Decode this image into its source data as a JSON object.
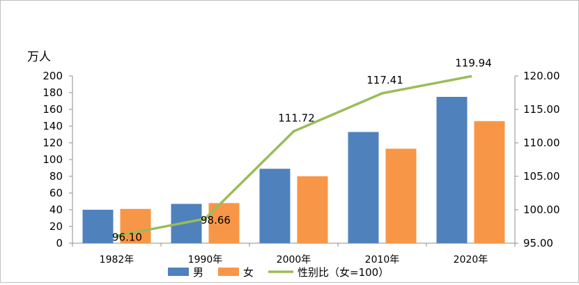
{
  "chart_data": {
    "type": "bar",
    "y_unit": "万人",
    "categories": [
      "1982年",
      "1990年",
      "2000年",
      "2010年",
      "2020年"
    ],
    "ylim": [
      0,
      200
    ],
    "yticks": [
      "0",
      "20",
      "40",
      "60",
      "80",
      "100",
      "120",
      "140",
      "160",
      "180",
      "200"
    ],
    "y2lim": [
      95,
      120
    ],
    "y2ticks": [
      "95.00",
      "100.00",
      "105.00",
      "110.00",
      "115.00",
      "120.00"
    ],
    "series": [
      {
        "name": "男",
        "type": "bar",
        "axis": "left",
        "color": "#4f81bd",
        "values": [
          40,
          47,
          89,
          133,
          175
        ]
      },
      {
        "name": "女",
        "type": "bar",
        "axis": "left",
        "color": "#f79646",
        "values": [
          41,
          48,
          80,
          113,
          146
        ]
      },
      {
        "name": "性别比（女=100）",
        "type": "line",
        "axis": "right",
        "color": "#9bbb59",
        "values": [
          96.1,
          98.66,
          111.72,
          117.41,
          119.94
        ],
        "labels": [
          "96.10",
          "98.66",
          "111.72",
          "117.41",
          "119.94"
        ]
      }
    ],
    "grid": false,
    "legend_position": "bottom"
  }
}
